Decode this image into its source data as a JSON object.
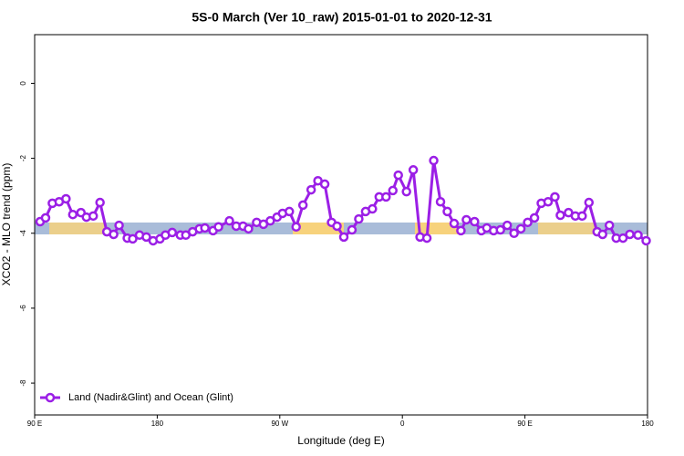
{
  "chart_data": {
    "type": "line",
    "title": "5S-0 March (Ver 10_raw)   2015-01-01 to 2020-12-31",
    "x_label": "Longitude (deg E)",
    "y_label": "XCO2 - MLO trend (ppm)",
    "xlim": [
      90,
      540
    ],
    "ylim": [
      -8.85,
      1.3
    ],
    "xticks": [
      {
        "value": 90,
        "label": "90 E"
      },
      180,
      {
        "value": 270,
        "label": "90 W"
      },
      {
        "value": 360,
        "label": "0"
      },
      {
        "value": 450,
        "label": "90 E"
      },
      {
        "value": 540,
        "label": "180"
      }
    ],
    "yticks": [
      0,
      -2,
      -4,
      -6,
      -8
    ],
    "legend": "bottom-left",
    "series": [
      {
        "name": "Land (Nadir&Glint) and Ocean (Glint)",
        "color": "#9b1fe6",
        "x": [
          94,
          98,
          103,
          108,
          113,
          118,
          124,
          128,
          133,
          138,
          143,
          148,
          152,
          158,
          162,
          167,
          172,
          177,
          182,
          186,
          191,
          197,
          201,
          206,
          211,
          215,
          221,
          225,
          233,
          238,
          243,
          247,
          253,
          258,
          263,
          268,
          272,
          277,
          282,
          287,
          293,
          298,
          303,
          308,
          312,
          317,
          323,
          328,
          333,
          338,
          343,
          348,
          353,
          357,
          363,
          368,
          373,
          378,
          383,
          388,
          393,
          398,
          403,
          407,
          413,
          418,
          422,
          427,
          432,
          437,
          442,
          447,
          452,
          457,
          462,
          467,
          472,
          476,
          482,
          487,
          492,
          497,
          503,
          507,
          512,
          517,
          522,
          527,
          533,
          539
        ],
        "values": [
          -3.69,
          -3.59,
          -3.2,
          -3.16,
          -3.08,
          -3.5,
          -3.45,
          -3.57,
          -3.54,
          -3.18,
          -3.96,
          -4.03,
          -3.79,
          -4.13,
          -4.15,
          -4.05,
          -4.1,
          -4.2,
          -4.15,
          -4.05,
          -3.98,
          -4.05,
          -4.05,
          -3.96,
          -3.88,
          -3.86,
          -3.93,
          -3.83,
          -3.67,
          -3.81,
          -3.81,
          -3.88,
          -3.71,
          -3.76,
          -3.67,
          -3.57,
          -3.47,
          -3.42,
          -3.83,
          -3.25,
          -2.84,
          -2.6,
          -2.69,
          -3.71,
          -3.81,
          -4.1,
          -3.91,
          -3.62,
          -3.42,
          -3.35,
          -3.03,
          -3.03,
          -2.86,
          -2.45,
          -2.89,
          -2.31,
          -4.1,
          -4.13,
          -2.06,
          -3.16,
          -3.42,
          -3.74,
          -3.93,
          -3.64,
          -3.69,
          -3.93,
          -3.86,
          -3.93,
          -3.91,
          -3.79,
          -4.0,
          -3.88,
          -3.71,
          -3.59,
          -3.2,
          -3.16,
          -3.03,
          -3.52,
          -3.45,
          -3.54,
          -3.54,
          -3.18,
          -3.96,
          -4.03,
          -3.79,
          -4.13,
          -4.13,
          -4.03,
          -4.05,
          -4.2
        ]
      }
    ]
  }
}
